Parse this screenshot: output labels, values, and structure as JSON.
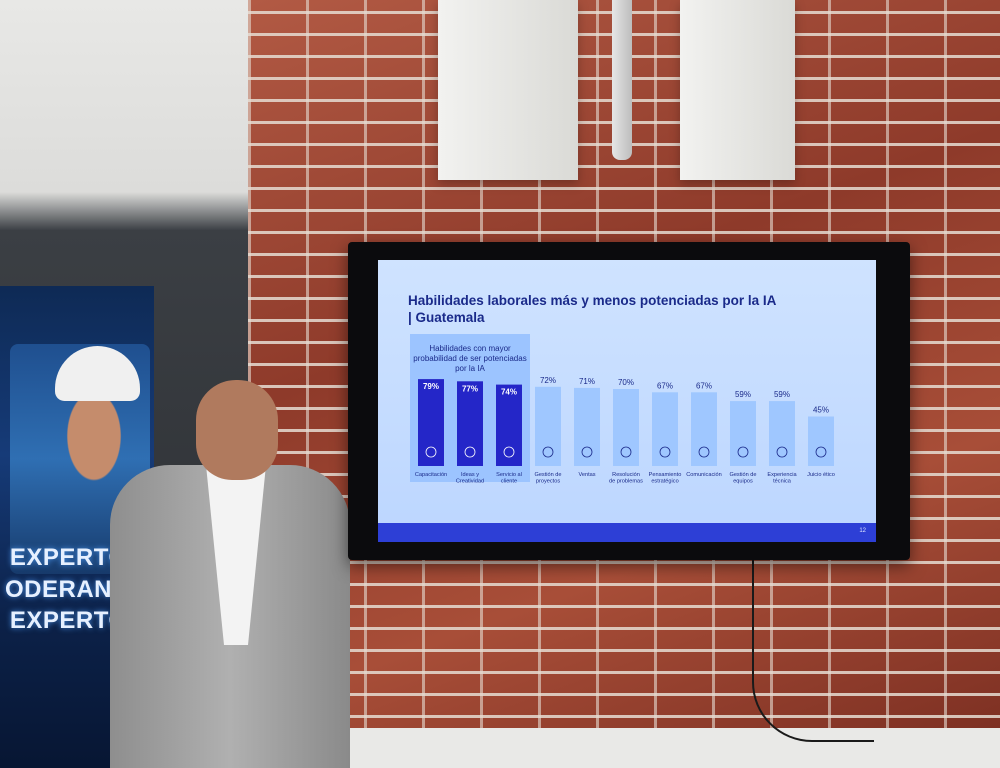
{
  "banner": {
    "lines": [
      "EXPERTOS",
      "ODERANDO",
      "EXPERTOS"
    ]
  },
  "slide": {
    "title_line1": "Habilidades laborales más y menos potenciadas por la IA",
    "title_line2": "| Guatemala",
    "highlight_label": "Habilidades con mayor probabilidad de ser potenciadas por la IA",
    "page_number": "12",
    "colors": {
      "highlight_bar": "#2426c8",
      "regular_bar": "#9fc7ff",
      "text": "#1a2a8a",
      "footer": "#2d3fd6"
    }
  },
  "chart_data": {
    "type": "bar",
    "categories": [
      "Capacitación",
      "Ideas y Creatividad",
      "Servicio al cliente",
      "Gestión de proyectos",
      "Ventas",
      "Resolución de problemas",
      "Pensamiento estratégico",
      "Comunicación",
      "Gestión de equipos",
      "Experiencia técnica",
      "Juicio ético"
    ],
    "values": [
      79,
      77,
      74,
      72,
      71,
      70,
      67,
      67,
      59,
      59,
      45
    ],
    "value_labels": [
      "79%",
      "77%",
      "74%",
      "72%",
      "71%",
      "70%",
      "67%",
      "67%",
      "59%",
      "59%",
      "45%"
    ],
    "highlighted": [
      true,
      true,
      true,
      false,
      false,
      false,
      false,
      false,
      false,
      false,
      false
    ],
    "ylim": [
      0,
      100
    ]
  }
}
